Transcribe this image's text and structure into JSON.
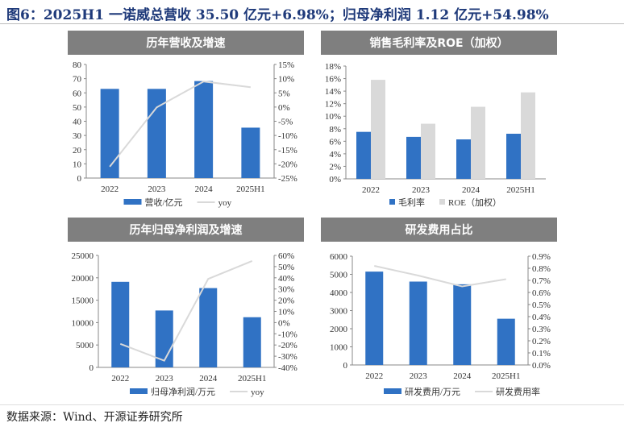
{
  "title": "图6：2025H1 一诺威总营收 35.50 亿元+6.98%；归母净利润 1.12 亿元+54.98%",
  "source": "数据来源：Wind、开源证券研究所",
  "colors": {
    "bar": "#3072c4",
    "bar2": "#d9d9d9",
    "line": "#d9d9d9"
  },
  "chart_data": [
    {
      "type": "bar+line",
      "title": "历年营收及增速",
      "categories": [
        "2022",
        "2023",
        "2024",
        "2025H1"
      ],
      "bars": [
        {
          "name": "营收/亿元",
          "values": [
            62.8,
            62.8,
            68.3,
            35.5
          ]
        }
      ],
      "line": {
        "name": "yoy",
        "values": [
          -21,
          -0.1,
          9,
          6.98
        ]
      },
      "ylim": [
        0,
        80
      ],
      "yticks": [
        "0",
        "10",
        "20",
        "30",
        "40",
        "50",
        "60",
        "70",
        "80"
      ],
      "y2lim": [
        -25,
        15
      ],
      "y2ticks": [
        "-25%",
        "-20%",
        "-15%",
        "-10%",
        "-5%",
        "0%",
        "5%",
        "10%",
        "15%"
      ]
    },
    {
      "type": "bar",
      "title": "销售毛利率及ROE（加权）",
      "categories": [
        "2022",
        "2023",
        "2024",
        "2025H1"
      ],
      "bars": [
        {
          "name": "毛利率",
          "values": [
            7.5,
            6.7,
            6.3,
            7.2
          ]
        },
        {
          "name": "ROE（加权）",
          "values": [
            15.8,
            8.8,
            11.5,
            13.8
          ]
        }
      ],
      "ylim": [
        0,
        18
      ],
      "yticks": [
        "0%",
        "2%",
        "4%",
        "6%",
        "8%",
        "10%",
        "12%",
        "14%",
        "16%",
        "18%"
      ]
    },
    {
      "type": "bar+line",
      "title": "历年归母净利润及增速",
      "categories": [
        "2022",
        "2023",
        "2024",
        "2025H1"
      ],
      "bars": [
        {
          "name": "归母净利润/万元",
          "values": [
            19100,
            12700,
            17700,
            11200
          ]
        }
      ],
      "line": {
        "name": "yoy",
        "values": [
          -19,
          -34,
          39,
          54.98
        ]
      },
      "ylim": [
        0,
        25000
      ],
      "yticks": [
        "0",
        "5000",
        "10000",
        "15000",
        "20000",
        "25000"
      ],
      "y2lim": [
        -40,
        60
      ],
      "y2ticks": [
        "-40%",
        "-30%",
        "-20%",
        "-10%",
        "0%",
        "10%",
        "20%",
        "30%",
        "40%",
        "50%",
        "60%"
      ]
    },
    {
      "type": "bar+line",
      "title": "研发费用占比",
      "categories": [
        "2022",
        "2023",
        "2024",
        "2025H1"
      ],
      "bars": [
        {
          "name": "研发费用/万元",
          "values": [
            5150,
            4600,
            4450,
            2550
          ]
        }
      ],
      "line": {
        "name": "研发费用率",
        "values": [
          0.82,
          0.74,
          0.65,
          0.71
        ]
      },
      "ylim": [
        0,
        6000
      ],
      "yticks": [
        "0",
        "1000",
        "2000",
        "3000",
        "4000",
        "5000",
        "6000"
      ],
      "y2lim": [
        0,
        0.9
      ],
      "y2ticks": [
        "0.0%",
        "0.1%",
        "0.2%",
        "0.3%",
        "0.4%",
        "0.5%",
        "0.6%",
        "0.7%",
        "0.8%",
        "0.9%"
      ]
    }
  ]
}
